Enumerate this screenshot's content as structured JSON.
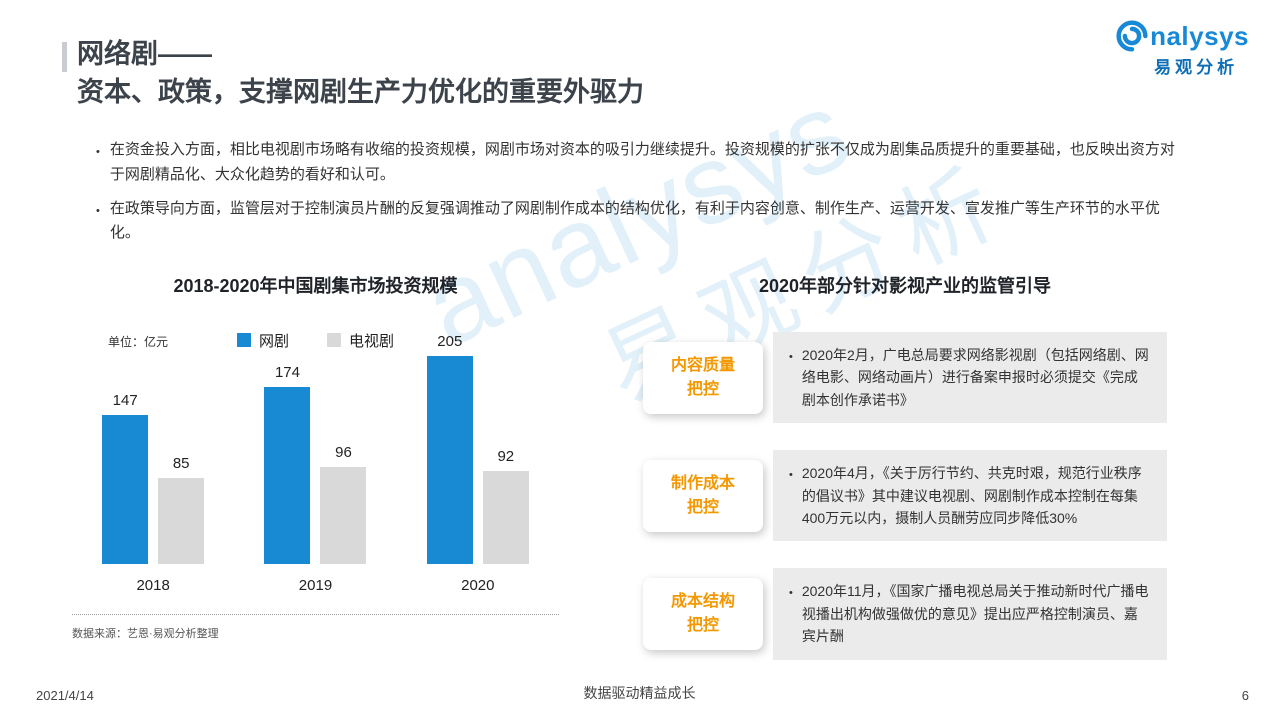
{
  "slide": {
    "title_line1": "网络剧——",
    "title_line2": "资本、政策，支撑网剧生产力优化的重要外驱力",
    "footer": {
      "date": "2021/4/14",
      "center": "数据驱动精益成长",
      "page": "6"
    }
  },
  "logo": {
    "brand_suffix": "nalysys",
    "brand_cn": "易观分析"
  },
  "watermark": {
    "en": "analysys",
    "cn": "易观分析"
  },
  "bullets": [
    "在资金投入方面，相比电视剧市场略有收缩的投资规模，网剧市场对资本的吸引力继续提升。投资规模的扩张不仅成为剧集品质提升的重要基础，也反映出资方对于网剧精品化、大众化趋势的看好和认可。",
    "在政策导向方面，监管层对于控制演员片酬的反复强调推动了网剧制作成本的结构优化，有利于内容创意、制作生产、运营开发、宣发推广等生产环节的水平优化。"
  ],
  "chart": {
    "title": "2018-2020年中国剧集市场投资规模",
    "unit": "单位：亿元",
    "source": "数据来源：艺恩·易观分析整理"
  },
  "chart_data": {
    "type": "bar",
    "title": "2018-2020年中国剧集市场投资规模",
    "categories": [
      "2018",
      "2019",
      "2020"
    ],
    "series": [
      {
        "name": "网剧",
        "color": "#1889d3",
        "values": [
          147,
          174,
          205
        ]
      },
      {
        "name": "电视剧",
        "color": "#d9d9d9",
        "values": [
          85,
          96,
          92
        ]
      }
    ],
    "xlabel": "",
    "ylabel": "亿元",
    "ylim": [
      0,
      220
    ],
    "grid": false,
    "legend_position": "top"
  },
  "regulation": {
    "title": "2020年部分针对影视产业的监管引导",
    "items": [
      {
        "tag": "内容质量\n把控",
        "text": "2020年2月，广电总局要求网络影视剧（包括网络剧、网络电影、网络动画片）进行备案申报时必须提交《完成剧本创作承诺书》"
      },
      {
        "tag": "制作成本\n把控",
        "text": "2020年4月，《关于厉行节约、共克时艰，规范行业秩序的倡议书》其中建议电视剧、网剧制作成本控制在每集400万元以内，摄制人员酬劳应同步降低30%"
      },
      {
        "tag": "成本结构\n把控",
        "text": "2020年11月，《国家广播电视总局关于推动新时代广播电视播出机构做强做优的意见》提出应严格控制演员、嘉宾片酬"
      }
    ]
  }
}
